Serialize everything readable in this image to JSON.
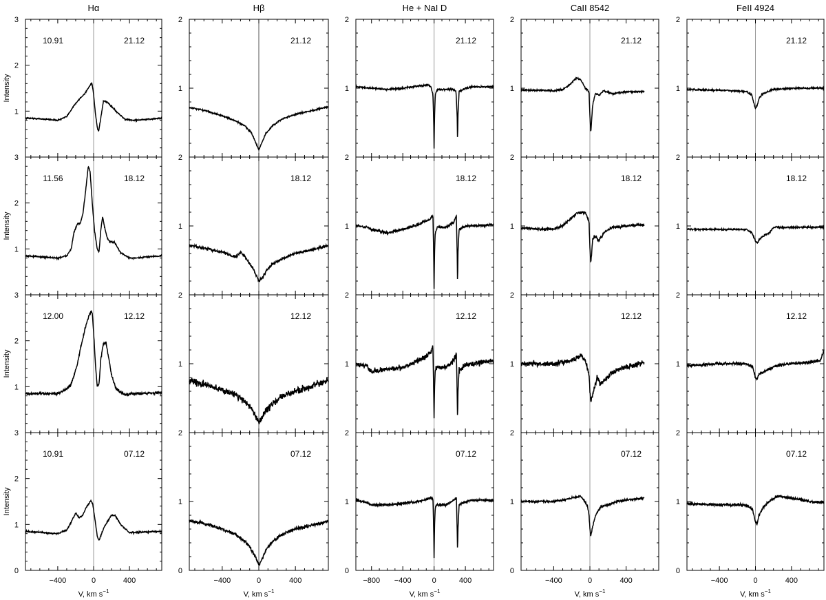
{
  "figure": {
    "ylabel": "Intensity",
    "xlabel_main": "V, km s",
    "xlabel_sup": "−1"
  },
  "columns": [
    {
      "title": "Hα",
      "yticks": [
        "0",
        "1",
        "2",
        "3"
      ],
      "xticks": [
        "−400",
        "0",
        "400"
      ]
    },
    {
      "title": "Hβ",
      "yticks": [
        "0",
        "1",
        "2"
      ],
      "xticks": [
        "−400",
        "0",
        "400"
      ]
    },
    {
      "title": "He + NaI D",
      "yticks": [
        "0",
        "1",
        "2"
      ],
      "xticks": [
        "−800",
        "−400",
        "0",
        "400"
      ]
    },
    {
      "title": "CaII 8542",
      "yticks": [
        "0",
        "1",
        "2"
      ],
      "xticks": [
        "−400",
        "0",
        "400"
      ]
    },
    {
      "title": "FeII 4924",
      "yticks": [
        "0",
        "1",
        "2"
      ],
      "xticks": [
        "−400",
        "0",
        "400"
      ]
    }
  ],
  "rows": [
    {
      "date": "21.12",
      "halpha_label": "10.91"
    },
    {
      "date": "18.12",
      "halpha_label": "11.56"
    },
    {
      "date": "12.12",
      "halpha_label": "12.00"
    },
    {
      "date": "07.12",
      "halpha_label": "10.91"
    }
  ],
  "chart_data": [
    {
      "type": "line",
      "title": "Hα",
      "xlabel": "V, km s−1",
      "ylabel": "Intensity",
      "xlim": [
        -760,
        760
      ],
      "ylim": [
        0,
        3
      ],
      "zero_line": true,
      "panels": [
        {
          "label": "21.12",
          "inset": "10.91",
          "noise": 0.012,
          "cont": 0.85,
          "x": [
            -760,
            -500,
            -400,
            -300,
            -220,
            -150,
            -100,
            -60,
            -20,
            -5,
            20,
            40,
            55,
            80,
            110,
            150,
            250,
            350,
            450,
            600,
            760
          ],
          "y": [
            0.85,
            0.82,
            0.8,
            0.88,
            1.12,
            1.28,
            1.38,
            1.5,
            1.62,
            1.45,
            0.95,
            0.65,
            0.55,
            0.85,
            1.22,
            1.2,
            1.0,
            0.82,
            0.8,
            0.82,
            0.85
          ]
        },
        {
          "label": "18.12",
          "inset": "11.56",
          "noise": 0.015,
          "cont": 0.85,
          "x": [
            -760,
            -400,
            -300,
            -250,
            -220,
            -180,
            -150,
            -120,
            -90,
            -60,
            -40,
            -15,
            10,
            40,
            60,
            80,
            100,
            120,
            150,
            180,
            230,
            300,
            400,
            500,
            600,
            760
          ],
          "y": [
            0.85,
            0.8,
            0.85,
            1.0,
            1.35,
            1.55,
            1.55,
            1.75,
            2.25,
            2.8,
            2.7,
            2.0,
            1.4,
            1.0,
            0.92,
            1.4,
            1.7,
            1.5,
            1.25,
            1.15,
            1.15,
            0.92,
            0.8,
            0.8,
            0.83,
            0.85
          ]
        },
        {
          "label": "12.12",
          "inset": "12.00",
          "noise": 0.025,
          "cont": 0.85,
          "x": [
            -760,
            -400,
            -300,
            -250,
            -180,
            -150,
            -120,
            -90,
            -60,
            -30,
            -15,
            0,
            20,
            40,
            60,
            80,
            110,
            140,
            170,
            200,
            250,
            350,
            450,
            760
          ],
          "y": [
            0.85,
            0.85,
            0.95,
            1.05,
            1.5,
            1.8,
            2.05,
            2.3,
            2.5,
            2.65,
            2.6,
            2.2,
            1.5,
            1.0,
            1.05,
            1.6,
            1.95,
            1.95,
            1.6,
            1.25,
            0.95,
            0.82,
            0.85,
            0.87
          ]
        },
        {
          "label": "07.12",
          "inset": "10.91",
          "noise": 0.015,
          "cont": 0.85,
          "x": [
            -760,
            -400,
            -300,
            -250,
            -200,
            -160,
            -120,
            -80,
            -30,
            -10,
            20,
            40,
            60,
            80,
            120,
            150,
            200,
            240,
            300,
            400,
            760
          ],
          "y": [
            0.85,
            0.8,
            0.88,
            1.05,
            1.25,
            1.15,
            1.2,
            1.38,
            1.52,
            1.45,
            1.05,
            0.75,
            0.65,
            0.75,
            0.95,
            1.05,
            1.2,
            1.2,
            1.0,
            0.82,
            0.85
          ]
        }
      ]
    },
    {
      "type": "line",
      "title": "Hβ",
      "xlabel": "V, km s−1",
      "ylabel": "",
      "xlim": [
        -760,
        760
      ],
      "ylim": [
        0,
        2
      ],
      "zero_line": true,
      "panels": [
        {
          "label": "21.12",
          "noise": 0.01,
          "x": [
            -760,
            -600,
            -400,
            -250,
            -150,
            -80,
            -30,
            0,
            30,
            80,
            150,
            250,
            400,
            600,
            760
          ],
          "y": [
            0.72,
            0.68,
            0.6,
            0.52,
            0.45,
            0.35,
            0.2,
            0.1,
            0.2,
            0.35,
            0.45,
            0.55,
            0.62,
            0.68,
            0.73
          ]
        },
        {
          "label": "18.12",
          "noise": 0.018,
          "x": [
            -760,
            -600,
            -400,
            -250,
            -200,
            -150,
            -100,
            -50,
            0,
            40,
            80,
            150,
            250,
            400,
            600,
            760
          ],
          "y": [
            0.72,
            0.68,
            0.62,
            0.55,
            0.62,
            0.55,
            0.45,
            0.35,
            0.2,
            0.25,
            0.35,
            0.45,
            0.52,
            0.6,
            0.66,
            0.72
          ]
        },
        {
          "label": "12.12",
          "noise": 0.045,
          "x": [
            -760,
            -600,
            -400,
            -250,
            -150,
            -80,
            -20,
            0,
            30,
            80,
            150,
            250,
            400,
            600,
            760
          ],
          "y": [
            0.75,
            0.7,
            0.62,
            0.55,
            0.45,
            0.35,
            0.2,
            0.15,
            0.22,
            0.32,
            0.42,
            0.52,
            0.6,
            0.68,
            0.75
          ]
        },
        {
          "label": "07.12",
          "noise": 0.022,
          "x": [
            -760,
            -600,
            -400,
            -250,
            -150,
            -80,
            -20,
            0,
            30,
            80,
            150,
            250,
            400,
            600,
            760
          ],
          "y": [
            0.72,
            0.68,
            0.6,
            0.52,
            0.42,
            0.3,
            0.15,
            0.08,
            0.15,
            0.3,
            0.42,
            0.52,
            0.6,
            0.66,
            0.72
          ]
        }
      ]
    },
    {
      "type": "line",
      "title": "He + NaI D",
      "xlabel": "V, km s−1",
      "ylabel": "",
      "xlim": [
        -1000,
        760
      ],
      "ylim": [
        0,
        2
      ],
      "zero_line": true,
      "panels": [
        {
          "label": "21.12",
          "noise": 0.012,
          "x": [
            -1000,
            -800,
            -600,
            -400,
            -200,
            -80,
            -40,
            -15,
            -5,
            0,
            5,
            15,
            40,
            150,
            250,
            280,
            295,
            300,
            305,
            320,
            400,
            500,
            760
          ],
          "y": [
            1.02,
            1.0,
            0.98,
            1.0,
            1.03,
            1.05,
            1.02,
            0.9,
            0.55,
            0.1,
            0.55,
            0.9,
            0.98,
            0.98,
            0.98,
            0.95,
            0.6,
            0.2,
            0.6,
            0.95,
            1.0,
            1.02,
            1.02
          ]
        },
        {
          "label": "18.12",
          "noise": 0.018,
          "x": [
            -1000,
            -850,
            -800,
            -600,
            -400,
            -200,
            -50,
            -15,
            -5,
            0,
            5,
            15,
            40,
            150,
            250,
            285,
            295,
            300,
            305,
            320,
            400,
            500,
            760
          ],
          "y": [
            1.0,
            0.98,
            0.95,
            0.9,
            0.95,
            1.02,
            1.1,
            1.15,
            0.6,
            0.05,
            0.6,
            0.9,
            0.98,
            0.98,
            1.05,
            1.15,
            0.6,
            0.1,
            0.6,
            0.95,
            1.0,
            1.0,
            1.02
          ]
        },
        {
          "label": "12.12",
          "noise": 0.035,
          "x": [
            -1000,
            -850,
            -800,
            -600,
            -400,
            -200,
            -50,
            -15,
            -5,
            0,
            5,
            15,
            40,
            150,
            250,
            285,
            295,
            300,
            305,
            320,
            400,
            500,
            760
          ],
          "y": [
            1.0,
            0.95,
            0.88,
            0.92,
            0.95,
            1.05,
            1.15,
            1.25,
            0.6,
            0.15,
            0.6,
            0.92,
            0.95,
            0.95,
            1.05,
            1.15,
            0.6,
            0.15,
            0.6,
            0.9,
            0.98,
            1.0,
            1.05
          ]
        },
        {
          "label": "07.12",
          "noise": 0.015,
          "x": [
            -1000,
            -850,
            -800,
            -600,
            -400,
            -200,
            -50,
            -15,
            -5,
            0,
            5,
            15,
            40,
            150,
            250,
            285,
            295,
            300,
            305,
            320,
            400,
            500,
            760
          ],
          "y": [
            1.02,
            0.98,
            0.95,
            0.95,
            0.97,
            1.0,
            1.05,
            1.05,
            0.6,
            0.15,
            0.6,
            0.92,
            0.95,
            0.95,
            1.02,
            1.05,
            0.6,
            0.25,
            0.6,
            0.95,
            1.0,
            1.02,
            1.02
          ]
        }
      ]
    },
    {
      "type": "line",
      "title": "CaII 8542",
      "xlabel": "V, km s−1",
      "ylabel": "",
      "xlim": [
        -760,
        760
      ],
      "ylim": [
        0,
        2
      ],
      "zero_line": true,
      "panels": [
        {
          "label": "21.12",
          "noise": 0.012,
          "x": [
            -760,
            -500,
            -400,
            -300,
            -220,
            -150,
            -100,
            -50,
            -10,
            0,
            10,
            30,
            60,
            100,
            150,
            250,
            400,
            600
          ],
          "y": [
            0.97,
            0.97,
            0.96,
            0.98,
            1.05,
            1.15,
            1.12,
            1.0,
            0.95,
            0.6,
            0.35,
            0.75,
            0.92,
            0.9,
            0.96,
            0.92,
            0.95,
            0.95
          ]
        },
        {
          "label": "18.12",
          "noise": 0.02,
          "x": [
            -760,
            -500,
            -400,
            -300,
            -220,
            -150,
            -80,
            -40,
            -10,
            0,
            10,
            30,
            60,
            100,
            150,
            250,
            400,
            600
          ],
          "y": [
            0.97,
            0.95,
            0.96,
            1.0,
            1.1,
            1.18,
            1.2,
            1.18,
            1.05,
            0.7,
            0.45,
            0.8,
            0.85,
            0.78,
            0.9,
            0.98,
            1.0,
            1.02
          ]
        },
        {
          "label": "12.12",
          "noise": 0.035,
          "x": [
            -760,
            -500,
            -400,
            -300,
            -200,
            -100,
            -50,
            -10,
            0,
            10,
            40,
            80,
            120,
            200,
            300,
            400,
            600
          ],
          "y": [
            1.0,
            1.0,
            1.0,
            1.02,
            1.05,
            1.12,
            1.05,
            0.85,
            0.6,
            0.45,
            0.6,
            0.8,
            0.7,
            0.82,
            0.92,
            0.95,
            1.02
          ]
        },
        {
          "label": "07.12",
          "noise": 0.015,
          "x": [
            -760,
            -500,
            -400,
            -300,
            -200,
            -100,
            -30,
            -10,
            0,
            10,
            40,
            80,
            120,
            200,
            300,
            400,
            600
          ],
          "y": [
            1.0,
            1.0,
            1.0,
            1.02,
            1.05,
            1.08,
            0.95,
            0.8,
            0.6,
            0.5,
            0.7,
            0.85,
            0.92,
            0.95,
            1.0,
            1.02,
            1.05
          ]
        }
      ]
    },
    {
      "type": "line",
      "title": "FeII 4924",
      "xlabel": "V, km s−1",
      "ylabel": "",
      "xlim": [
        -760,
        760
      ],
      "ylim": [
        0,
        2
      ],
      "zero_line": true,
      "panels": [
        {
          "label": "21.12",
          "noise": 0.012,
          "x": [
            -760,
            -400,
            -200,
            -100,
            -40,
            0,
            20,
            40,
            80,
            200,
            400,
            600,
            760
          ],
          "y": [
            0.98,
            0.97,
            0.96,
            0.95,
            0.9,
            0.7,
            0.75,
            0.85,
            0.92,
            0.98,
            1.0,
            1.0,
            1.0
          ]
        },
        {
          "label": "18.12",
          "noise": 0.012,
          "x": [
            -760,
            -400,
            -200,
            -100,
            -40,
            0,
            20,
            40,
            80,
            150,
            200,
            400,
            600,
            760
          ],
          "y": [
            0.95,
            0.95,
            0.95,
            0.95,
            0.9,
            0.78,
            0.75,
            0.8,
            0.85,
            0.9,
            0.98,
            0.98,
            0.98,
            0.98
          ]
        },
        {
          "label": "12.12",
          "noise": 0.018,
          "x": [
            -760,
            -400,
            -200,
            -100,
            -30,
            0,
            20,
            40,
            80,
            150,
            250,
            400,
            600,
            720,
            760
          ],
          "y": [
            0.97,
            1.0,
            1.0,
            1.0,
            0.95,
            0.8,
            0.78,
            0.85,
            0.88,
            0.92,
            0.98,
            1.0,
            1.02,
            1.05,
            1.18
          ]
        },
        {
          "label": "07.12",
          "noise": 0.02,
          "x": [
            -760,
            -400,
            -200,
            -100,
            -30,
            0,
            20,
            40,
            80,
            150,
            250,
            400,
            600,
            760
          ],
          "y": [
            0.97,
            0.95,
            0.95,
            0.95,
            0.88,
            0.7,
            0.68,
            0.8,
            0.9,
            1.0,
            1.08,
            1.05,
            1.0,
            0.98
          ]
        }
      ]
    }
  ]
}
